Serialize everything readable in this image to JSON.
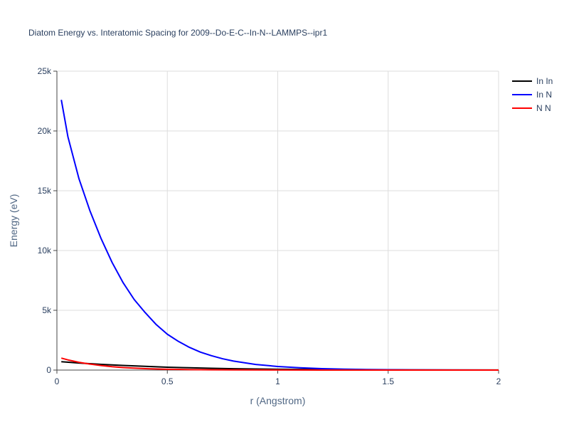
{
  "chart_data": {
    "type": "line",
    "title": "Diatom Energy vs. Interatomic Spacing for 2009--Do-E-C--In-N--LAMMPS--ipr1",
    "xlabel": "r (Angstrom)",
    "ylabel": "Energy (eV)",
    "xlim": [
      0,
      2
    ],
    "ylim": [
      0,
      25000
    ],
    "x_ticks": [
      0,
      0.5,
      1,
      1.5,
      2
    ],
    "x_tick_labels": [
      "0",
      "0.5",
      "1",
      "1.5",
      "2"
    ],
    "y_ticks": [
      0,
      5000,
      10000,
      15000,
      20000,
      25000
    ],
    "y_tick_labels": [
      "0",
      "5k",
      "10k",
      "15k",
      "20k",
      "25k"
    ],
    "grid": true,
    "legend_position": "top-right",
    "series": [
      {
        "name": "In In",
        "color": "#000000",
        "x": [
          0.02,
          0.1,
          0.2,
          0.3,
          0.4,
          0.5,
          0.6,
          0.7,
          0.8,
          0.9,
          1.0,
          1.2,
          1.4,
          1.6,
          1.8,
          2.0
        ],
        "y": [
          700,
          590,
          480,
          390,
          310,
          240,
          190,
          150,
          115,
          90,
          70,
          45,
          30,
          18,
          10,
          5
        ]
      },
      {
        "name": "In N",
        "color": "#0000ff",
        "x": [
          0.02,
          0.05,
          0.1,
          0.15,
          0.2,
          0.25,
          0.3,
          0.35,
          0.4,
          0.45,
          0.5,
          0.55,
          0.6,
          0.65,
          0.7,
          0.75,
          0.8,
          0.9,
          1.0,
          1.1,
          1.2,
          1.3,
          1.4,
          1.5,
          1.6,
          1.8,
          2.0
        ],
        "y": [
          22600,
          19500,
          16000,
          13300,
          11000,
          9000,
          7300,
          5900,
          4800,
          3800,
          3000,
          2400,
          1900,
          1500,
          1200,
          950,
          750,
          470,
          300,
          190,
          120,
          75,
          45,
          28,
          16,
          5,
          0
        ]
      },
      {
        "name": "N N",
        "color": "#ff0000",
        "x": [
          0.02,
          0.05,
          0.1,
          0.15,
          0.2,
          0.25,
          0.3,
          0.35,
          0.4,
          0.5,
          0.6,
          0.7,
          0.8,
          1.0,
          1.2,
          1.5,
          2.0
        ],
        "y": [
          1000,
          850,
          650,
          500,
          380,
          280,
          210,
          160,
          120,
          70,
          40,
          25,
          15,
          5,
          2,
          0,
          0
        ]
      }
    ]
  }
}
